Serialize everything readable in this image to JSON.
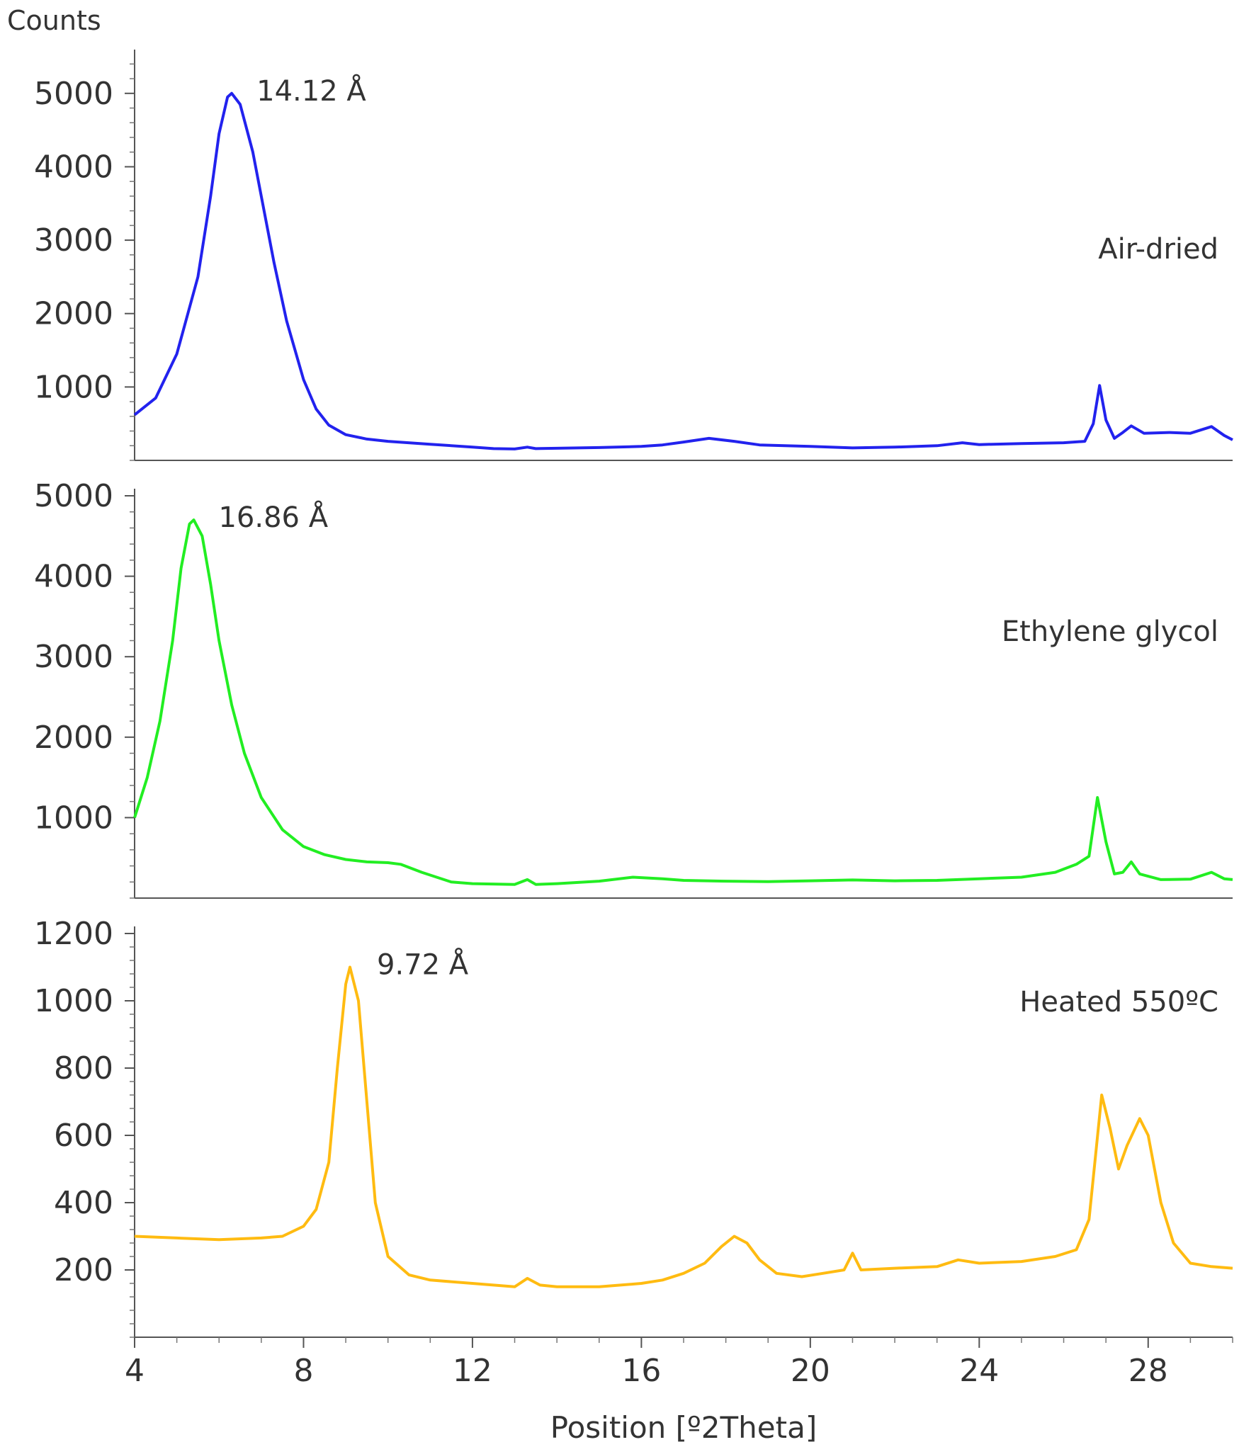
{
  "chart_data": {
    "type": "line",
    "ylabel": "Counts",
    "xlabel": "Position [º2Theta]",
    "xlim": [
      4,
      30
    ],
    "x_ticks": [
      4,
      8,
      12,
      16,
      20,
      24,
      28
    ],
    "panels": [
      {
        "name": "Air-dried",
        "color": "#2222ee",
        "ylim": [
          0,
          5500
        ],
        "y_ticks": [
          1000,
          2000,
          3000,
          4000,
          5000
        ],
        "annotation": "14.12 Å",
        "peak": {
          "x": 6.25,
          "y": 5000
        },
        "points": [
          [
            4.0,
            620
          ],
          [
            4.5,
            850
          ],
          [
            5.0,
            1450
          ],
          [
            5.5,
            2500
          ],
          [
            5.8,
            3600
          ],
          [
            6.0,
            4450
          ],
          [
            6.2,
            4950
          ],
          [
            6.3,
            5000
          ],
          [
            6.5,
            4850
          ],
          [
            6.8,
            4200
          ],
          [
            7.0,
            3600
          ],
          [
            7.3,
            2700
          ],
          [
            7.6,
            1900
          ],
          [
            8.0,
            1100
          ],
          [
            8.3,
            700
          ],
          [
            8.6,
            480
          ],
          [
            9.0,
            350
          ],
          [
            9.5,
            290
          ],
          [
            10.0,
            260
          ],
          [
            11.0,
            220
          ],
          [
            12.0,
            180
          ],
          [
            12.5,
            160
          ],
          [
            13.0,
            155
          ],
          [
            13.3,
            180
          ],
          [
            13.5,
            160
          ],
          [
            14.0,
            165
          ],
          [
            15.0,
            175
          ],
          [
            16.0,
            190
          ],
          [
            16.5,
            210
          ],
          [
            17.0,
            250
          ],
          [
            17.6,
            300
          ],
          [
            18.2,
            260
          ],
          [
            18.8,
            210
          ],
          [
            20.0,
            190
          ],
          [
            21.0,
            170
          ],
          [
            22.0,
            180
          ],
          [
            23.0,
            200
          ],
          [
            23.6,
            240
          ],
          [
            24.0,
            215
          ],
          [
            25.0,
            230
          ],
          [
            26.0,
            240
          ],
          [
            26.5,
            260
          ],
          [
            26.7,
            500
          ],
          [
            26.85,
            1020
          ],
          [
            27.0,
            550
          ],
          [
            27.2,
            300
          ],
          [
            27.4,
            380
          ],
          [
            27.6,
            470
          ],
          [
            27.9,
            370
          ],
          [
            28.5,
            380
          ],
          [
            29.0,
            370
          ],
          [
            29.5,
            460
          ],
          [
            29.8,
            340
          ],
          [
            30.0,
            280
          ]
        ]
      },
      {
        "name": "Ethylene glycol",
        "color": "#22ee22",
        "ylim": [
          0,
          5000
        ],
        "y_ticks": [
          1000,
          2000,
          3000,
          4000,
          5000
        ],
        "annotation": "16.86 Å",
        "peak": {
          "x": 5.35,
          "y": 4700
        },
        "points": [
          [
            4.0,
            1000
          ],
          [
            4.3,
            1500
          ],
          [
            4.6,
            2200
          ],
          [
            4.9,
            3200
          ],
          [
            5.1,
            4100
          ],
          [
            5.3,
            4650
          ],
          [
            5.4,
            4700
          ],
          [
            5.6,
            4500
          ],
          [
            5.8,
            3900
          ],
          [
            6.0,
            3200
          ],
          [
            6.3,
            2400
          ],
          [
            6.6,
            1800
          ],
          [
            7.0,
            1250
          ],
          [
            7.5,
            850
          ],
          [
            8.0,
            640
          ],
          [
            8.5,
            540
          ],
          [
            9.0,
            480
          ],
          [
            9.5,
            450
          ],
          [
            10.0,
            440
          ],
          [
            10.3,
            420
          ],
          [
            10.8,
            320
          ],
          [
            11.5,
            200
          ],
          [
            12.0,
            180
          ],
          [
            13.0,
            170
          ],
          [
            13.3,
            230
          ],
          [
            13.5,
            170
          ],
          [
            14.0,
            180
          ],
          [
            15.0,
            210
          ],
          [
            15.8,
            260
          ],
          [
            16.5,
            240
          ],
          [
            17.0,
            220
          ],
          [
            18.0,
            210
          ],
          [
            19.0,
            205
          ],
          [
            20.0,
            215
          ],
          [
            21.0,
            225
          ],
          [
            22.0,
            215
          ],
          [
            23.0,
            220
          ],
          [
            24.0,
            240
          ],
          [
            25.0,
            260
          ],
          [
            25.8,
            320
          ],
          [
            26.3,
            420
          ],
          [
            26.6,
            520
          ],
          [
            26.8,
            1250
          ],
          [
            27.0,
            700
          ],
          [
            27.2,
            300
          ],
          [
            27.4,
            320
          ],
          [
            27.6,
            450
          ],
          [
            27.8,
            300
          ],
          [
            28.3,
            230
          ],
          [
            29.0,
            235
          ],
          [
            29.5,
            320
          ],
          [
            29.8,
            240
          ],
          [
            30.0,
            230
          ]
        ]
      },
      {
        "name": "Heated 550ºC",
        "color": "#ffbb11",
        "ylim": [
          0,
          1200
        ],
        "y_ticks": [
          200,
          400,
          600,
          800,
          1000,
          1200
        ],
        "annotation": "9.72 Å",
        "peak": {
          "x": 9.1,
          "y": 1100
        },
        "points": [
          [
            4.0,
            300
          ],
          [
            5.0,
            295
          ],
          [
            6.0,
            290
          ],
          [
            7.0,
            295
          ],
          [
            7.5,
            300
          ],
          [
            8.0,
            330
          ],
          [
            8.3,
            380
          ],
          [
            8.6,
            520
          ],
          [
            8.8,
            800
          ],
          [
            9.0,
            1050
          ],
          [
            9.1,
            1100
          ],
          [
            9.3,
            1000
          ],
          [
            9.5,
            700
          ],
          [
            9.7,
            400
          ],
          [
            10.0,
            240
          ],
          [
            10.5,
            185
          ],
          [
            11.0,
            170
          ],
          [
            12.0,
            160
          ],
          [
            12.5,
            155
          ],
          [
            13.0,
            150
          ],
          [
            13.3,
            175
          ],
          [
            13.6,
            155
          ],
          [
            14.0,
            150
          ],
          [
            15.0,
            150
          ],
          [
            16.0,
            160
          ],
          [
            16.5,
            170
          ],
          [
            17.0,
            190
          ],
          [
            17.5,
            220
          ],
          [
            17.9,
            270
          ],
          [
            18.2,
            300
          ],
          [
            18.5,
            280
          ],
          [
            18.8,
            230
          ],
          [
            19.2,
            190
          ],
          [
            19.8,
            180
          ],
          [
            20.3,
            190
          ],
          [
            20.8,
            200
          ],
          [
            21.0,
            250
          ],
          [
            21.2,
            200
          ],
          [
            22.0,
            205
          ],
          [
            23.0,
            210
          ],
          [
            23.5,
            230
          ],
          [
            24.0,
            220
          ],
          [
            25.0,
            225
          ],
          [
            25.8,
            240
          ],
          [
            26.3,
            260
          ],
          [
            26.6,
            350
          ],
          [
            26.9,
            720
          ],
          [
            27.1,
            620
          ],
          [
            27.3,
            500
          ],
          [
            27.5,
            570
          ],
          [
            27.8,
            650
          ],
          [
            28.0,
            600
          ],
          [
            28.3,
            400
          ],
          [
            28.6,
            280
          ],
          [
            29.0,
            220
          ],
          [
            29.5,
            210
          ],
          [
            30.0,
            205
          ]
        ]
      }
    ]
  }
}
